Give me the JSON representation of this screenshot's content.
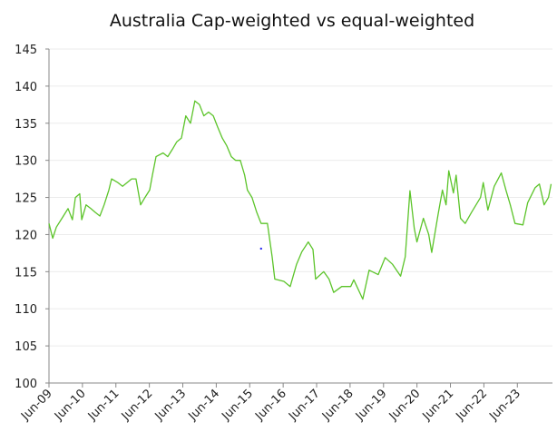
{
  "chart_data": {
    "type": "line",
    "title": "Australia Cap-weighted vs equal-weighted",
    "xlabel": "",
    "ylabel": "",
    "ylim": [
      100,
      145
    ],
    "xlim": [
      2009.5,
      2024.55
    ],
    "grid": true,
    "yticks": [
      "100",
      "105",
      "110",
      "115",
      "120",
      "125",
      "130",
      "135",
      "140",
      "145"
    ],
    "xticks": [
      "Jun-09",
      "Jun-10",
      "Jun-11",
      "Jun-12",
      "Jun-13",
      "Jun-14",
      "Jun-15",
      "Jun-16",
      "Jun-17",
      "Jun-18",
      "Jun-19",
      "Jun-20",
      "Jun-21",
      "Jun-22",
      "Jun-23"
    ],
    "series": [
      {
        "name": "Cap-weighted vs equal-weighted",
        "color": "#5cc42a",
        "x": [
          2009.5,
          2009.61,
          2009.72,
          2009.93,
          2010.07,
          2010.2,
          2010.29,
          2010.42,
          2010.48,
          2010.61,
          2010.75,
          2010.88,
          2011.02,
          2011.15,
          2011.29,
          2011.37,
          2011.56,
          2011.7,
          2011.97,
          2012.1,
          2012.24,
          2012.37,
          2012.51,
          2012.59,
          2012.7,
          2012.91,
          2013.05,
          2013.19,
          2013.32,
          2013.46,
          2013.59,
          2013.73,
          2013.86,
          2014.0,
          2014.13,
          2014.27,
          2014.41,
          2014.54,
          2014.68,
          2014.81,
          2014.95,
          2015.08,
          2015.22,
          2015.35,
          2015.43,
          2015.57,
          2015.71,
          2015.84,
          2016.03,
          2016.17,
          2016.25,
          2016.52,
          2016.71,
          2016.9,
          2017.06,
          2017.25,
          2017.39,
          2017.47,
          2017.71,
          2017.87,
          2018.01,
          2018.25,
          2018.52,
          2018.61,
          2018.88,
          2019.07,
          2019.34,
          2019.55,
          2019.77,
          2020.01,
          2020.15,
          2020.29,
          2020.42,
          2020.5,
          2020.69,
          2020.85,
          2020.94,
          2021.13,
          2021.26,
          2021.37,
          2021.45,
          2021.59,
          2021.67,
          2021.8,
          2021.94,
          2022.13,
          2022.4,
          2022.48,
          2022.62,
          2022.81,
          2023.02,
          2023.16,
          2023.29,
          2023.43,
          2023.67,
          2023.81,
          2024.03,
          2024.16,
          2024.3,
          2024.43,
          2024.51
        ],
        "y": [
          121.5,
          119.5,
          121,
          122.5,
          123.5,
          122,
          125,
          125.5,
          122,
          124,
          123.5,
          123,
          122.5,
          124,
          126,
          127.5,
          127,
          126.5,
          127.5,
          127.5,
          124,
          125,
          126,
          128,
          130.5,
          131,
          130.5,
          131.5,
          132.5,
          133,
          136,
          135,
          138,
          137.5,
          136,
          136.5,
          136,
          134.5,
          133,
          132,
          130.5,
          130,
          130,
          128,
          126,
          125,
          123,
          121.5,
          121.5,
          117,
          114,
          113.7,
          113,
          116,
          117.7,
          119,
          118,
          114,
          115,
          114,
          112.2,
          113,
          113,
          113.9,
          111.3,
          115.2,
          114.6,
          116.9,
          116,
          114.4,
          117,
          125.9,
          120.8,
          119,
          122.2,
          120,
          117.6,
          122.7,
          126,
          124,
          128.6,
          125.6,
          128,
          122.2,
          121.5,
          123,
          125,
          127,
          123.3,
          126.5,
          128.3,
          126,
          124,
          121.5,
          121.3,
          124.3,
          126.3,
          126.8,
          124,
          125,
          126.8
        ]
      },
      {
        "name": "marker",
        "color": "#2a2af0",
        "x": [
          2015.84
        ],
        "y": [
          118.1
        ]
      }
    ]
  }
}
